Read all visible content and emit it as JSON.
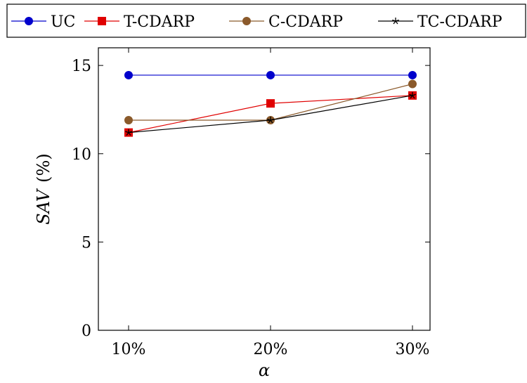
{
  "chart_data": {
    "type": "line",
    "title": "",
    "xlabel": "α",
    "ylabel_italic": "SAV",
    "ylabel_unit": "(%)",
    "categories": [
      "10%",
      "20%",
      "30%"
    ],
    "ylim": [
      0,
      16
    ],
    "yticks": [
      0,
      5,
      10,
      15
    ],
    "grid": false,
    "legend_position": "top",
    "series": [
      {
        "name": "UC",
        "values": [
          14.45,
          14.45,
          14.45
        ],
        "color": "#0000cc",
        "marker": "circle"
      },
      {
        "name": "T-CDARP",
        "values": [
          11.2,
          12.85,
          13.3
        ],
        "color": "#e00000",
        "marker": "square"
      },
      {
        "name": "C-CDARP",
        "values": [
          11.9,
          11.9,
          13.95
        ],
        "color": "#8b5a2b",
        "marker": "circle"
      },
      {
        "name": "TC-CDARP",
        "values": [
          11.2,
          11.9,
          13.3
        ],
        "color": "#000000",
        "marker": "star"
      }
    ]
  }
}
